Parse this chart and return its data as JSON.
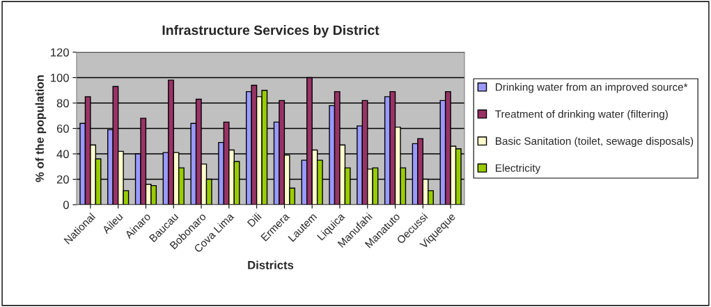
{
  "chart_data": {
    "type": "bar",
    "title": "Infrastructure Services by District",
    "xlabel": "Districts",
    "ylabel": "% of the population",
    "categories": [
      "National",
      "Aileu",
      "Ainaro",
      "Baucau",
      "Bobonaro",
      "Cova Lima",
      "Dili",
      "Ermera",
      "Lautem",
      "Liquica",
      "Manufahi",
      "Manatuto",
      "Oecussi",
      "Viqueque"
    ],
    "series": [
      {
        "name": "Drinking water from an improved source*",
        "color": "#9999ff",
        "values": [
          64,
          59,
          40,
          41,
          64,
          49,
          89,
          65,
          35,
          78,
          62,
          85,
          48,
          82
        ]
      },
      {
        "name": "Treatment of drinking water (filtering)",
        "color": "#993366",
        "values": [
          85,
          93,
          68,
          98,
          83,
          65,
          94,
          82,
          100,
          89,
          82,
          89,
          52,
          89
        ]
      },
      {
        "name": "Basic Sanitation (toilet, sewage disposals)",
        "color": "#ffffcc",
        "values": [
          47,
          42,
          16,
          41,
          32,
          43,
          85,
          39,
          43,
          47,
          28,
          61,
          20,
          46
        ]
      },
      {
        "name": "Electricity",
        "color": "#99cc00",
        "values": [
          36,
          11,
          15,
          29,
          20,
          34,
          90,
          13,
          35,
          29,
          29,
          29,
          11,
          44
        ]
      }
    ],
    "ylim": [
      0,
      120
    ],
    "yticks": [
      0,
      20,
      40,
      60,
      80,
      100,
      120
    ],
    "grid": "y",
    "legend": "right"
  }
}
